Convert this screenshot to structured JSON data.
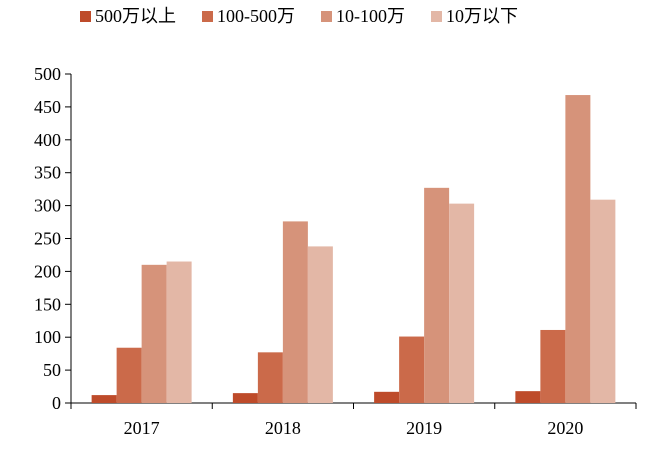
{
  "chart_data": {
    "type": "bar",
    "categories": [
      "2017",
      "2018",
      "2019",
      "2020"
    ],
    "series": [
      {
        "name": "500万以上",
        "values": [
          12,
          15,
          17,
          18
        ],
        "color": "#BE4B2A"
      },
      {
        "name": "100-500万",
        "values": [
          84,
          77,
          101,
          111
        ],
        "color": "#CB6A4A"
      },
      {
        "name": "10-100万",
        "values": [
          210,
          276,
          327,
          468
        ],
        "color": "#D6937A"
      },
      {
        "name": "10万以下",
        "values": [
          215,
          238,
          303,
          309
        ],
        "color": "#E3B7A6"
      }
    ],
    "ylim": [
      0,
      500
    ],
    "yticks": [
      0,
      50,
      100,
      150,
      200,
      250,
      300,
      350,
      400,
      450,
      500
    ],
    "title": "",
    "xlabel": "",
    "ylabel": "",
    "legend_position": "top",
    "grid": false
  }
}
